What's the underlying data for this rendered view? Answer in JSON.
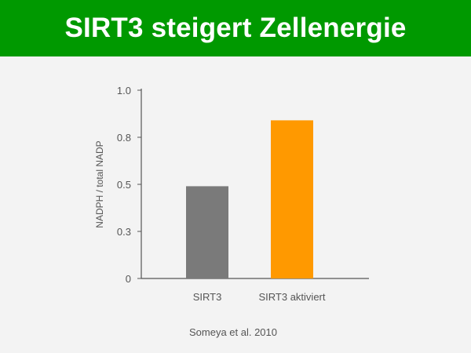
{
  "header": {
    "title": "SIRT3 steigert Zellenergie"
  },
  "colors": {
    "banner": "#009900",
    "bar_sirt3": "#7a7a7a",
    "bar_activated": "#ff9900",
    "axis": "#555555"
  },
  "chart_data": {
    "type": "bar",
    "title": "",
    "xlabel": "",
    "ylabel": "NADPH / total NADP",
    "categories": [
      "SIRT3",
      "SIRT3 aktiviert"
    ],
    "values": [
      0.49,
      0.84
    ],
    "ylim": [
      0,
      1.0
    ],
    "yticks": [
      0,
      0.25,
      0.5,
      0.75,
      1.0
    ],
    "ytick_labels": [
      "0",
      "0.3",
      "0.5",
      "0.8",
      "1.0"
    ],
    "grid": false,
    "source": "Someya et al. 2010"
  }
}
